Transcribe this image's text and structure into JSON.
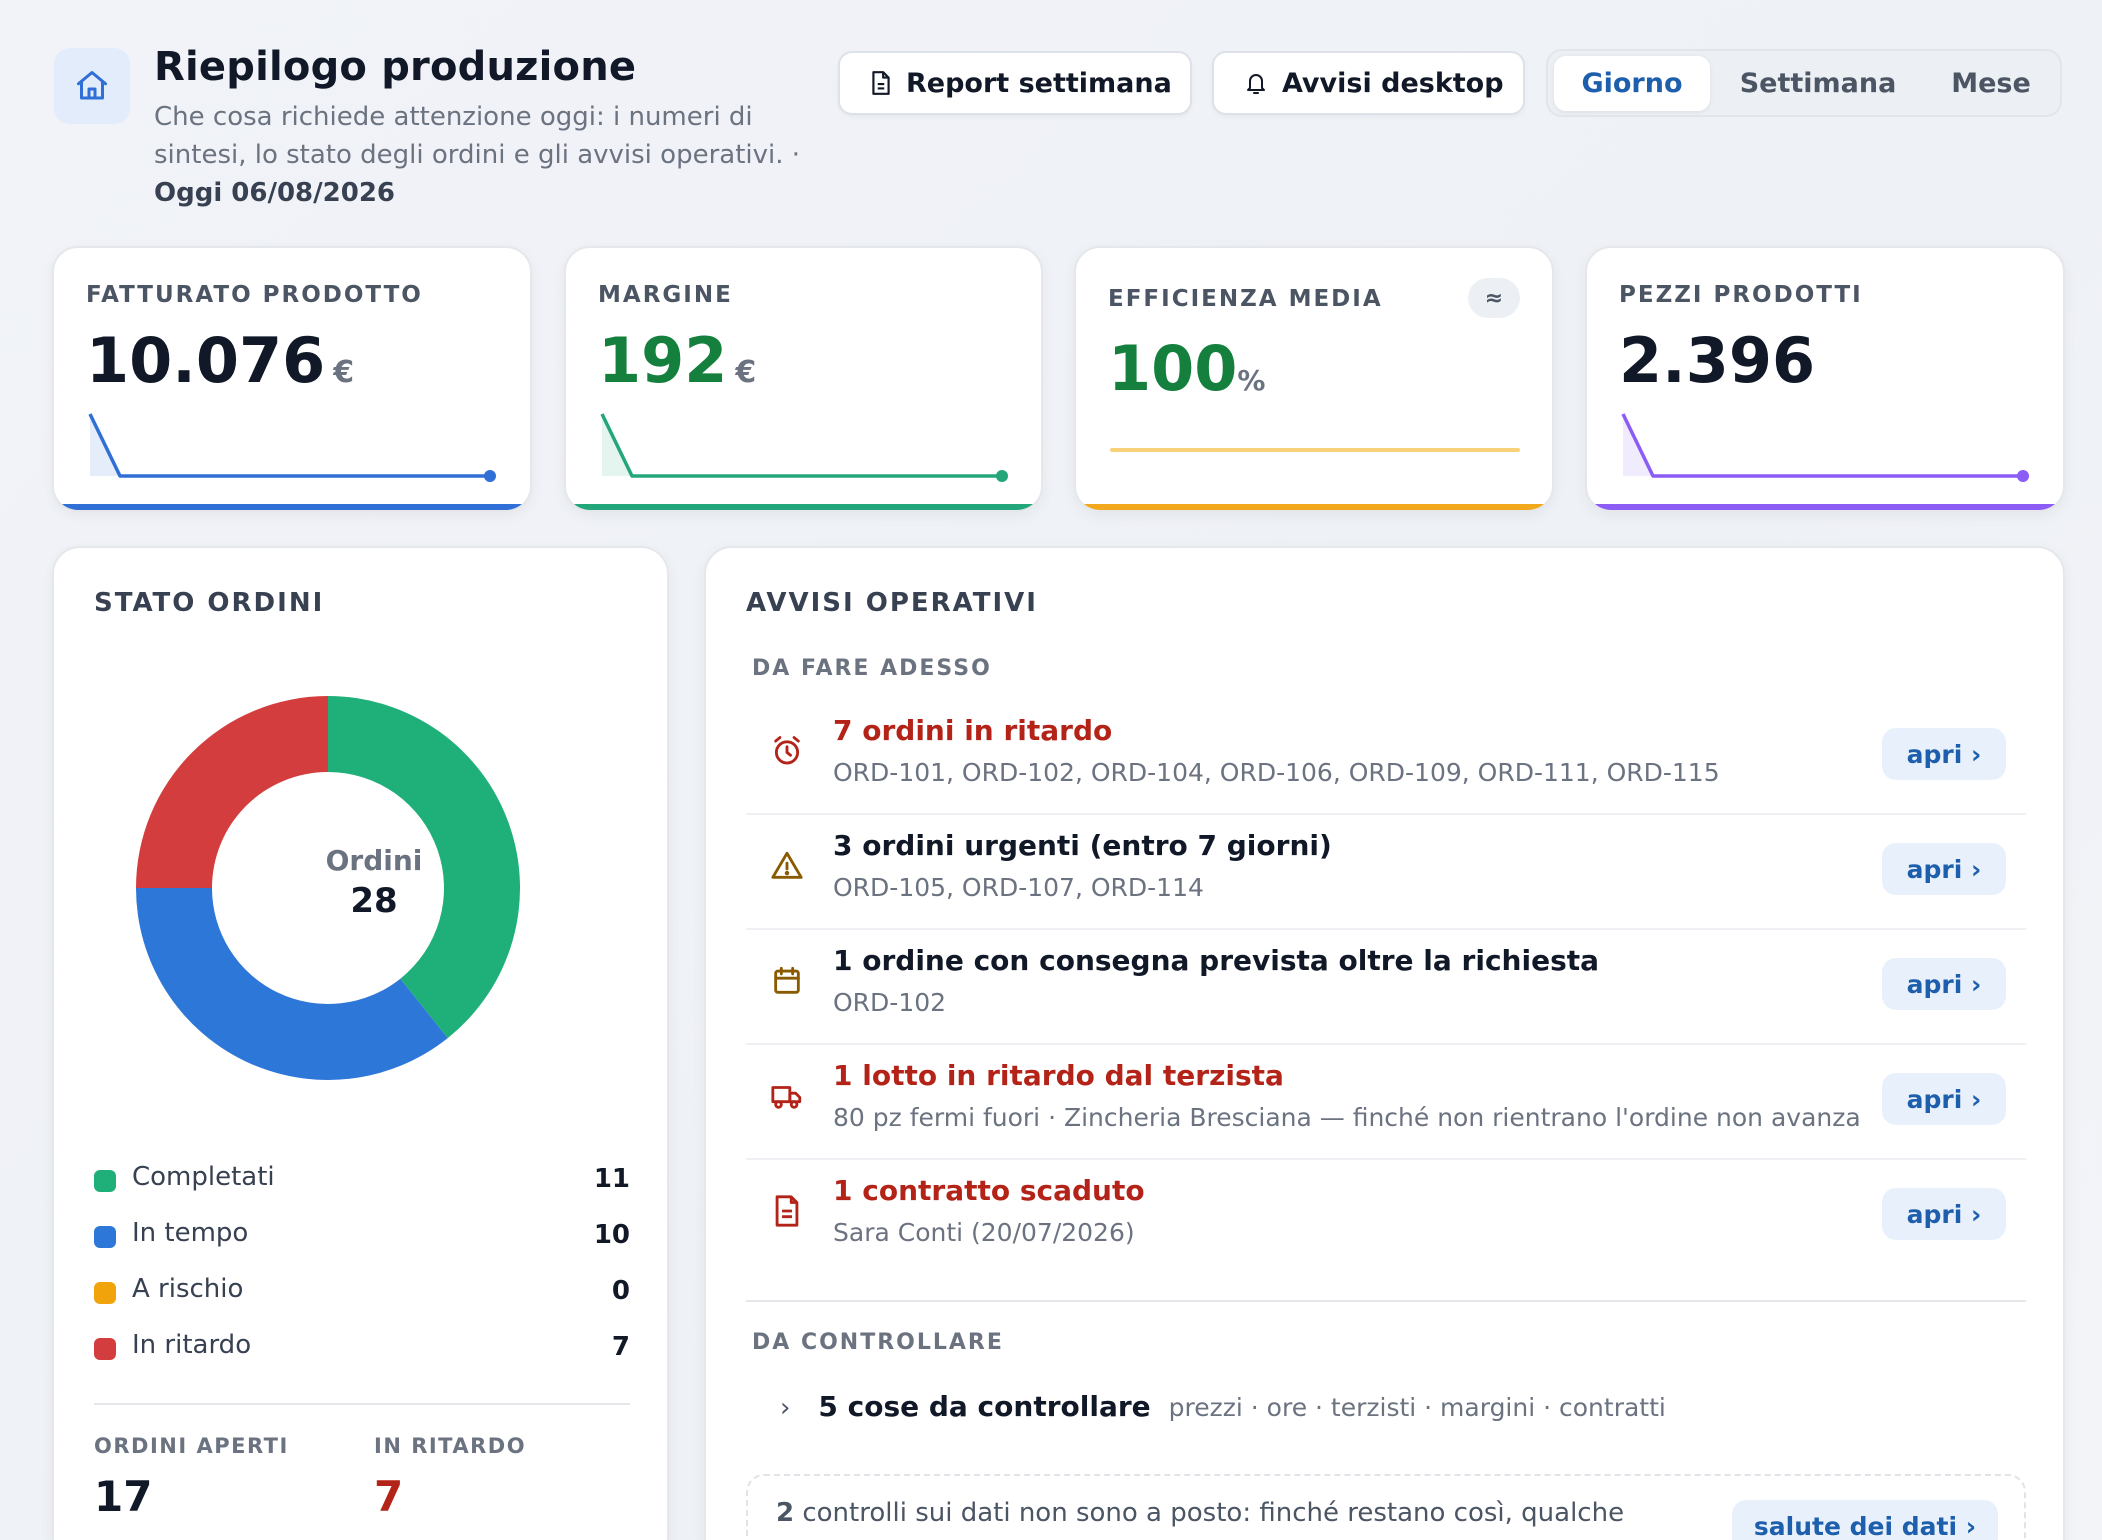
{
  "header": {
    "title": "Riepilogo produzione",
    "subtitle": "Che cosa richiede attenzione oggi: i numeri di sintesi, lo stato degli ordini e gli avvisi operativi. ·",
    "date": "Oggi 06/08/2026",
    "home_icon": "home-icon"
  },
  "toolbar": {
    "report_label": "Report settimana",
    "report_icon": "document-icon",
    "alerts_label": "Avvisi desktop",
    "alerts_icon": "bell-icon",
    "periods": [
      "Giorno",
      "Settimana",
      "Mese"
    ],
    "active_period": "Giorno"
  },
  "kpis": [
    {
      "label": "FATTURATO PRODOTTO",
      "value": "10.076",
      "unit": "€",
      "color": "#2f6fd6",
      "trend": [
        1,
        0,
        0,
        0,
        0,
        0,
        0,
        0,
        0,
        0,
        0,
        0
      ]
    },
    {
      "label": "MARGINE",
      "value": "192",
      "unit": "€",
      "color": "#22a67a",
      "trend": [
        1,
        0,
        0,
        0,
        0,
        0,
        0,
        0,
        0,
        0,
        0,
        0
      ]
    },
    {
      "label": "EFFICIENZA MEDIA",
      "value": "100",
      "unit": "%",
      "badge": "≈",
      "color": "#f2a81d",
      "trend": [
        1,
        1
      ]
    },
    {
      "label": "PEZZI PRODOTTI",
      "value": "2.396",
      "unit": "",
      "color": "#8b5cf6",
      "trend": [
        1,
        0,
        0,
        0,
        0,
        0,
        0,
        0,
        0,
        0,
        0,
        0
      ]
    }
  ],
  "orders": {
    "title": "STATO ORDINI",
    "center_label": "Ordini",
    "total": "28",
    "legend": [
      {
        "label": "Completati",
        "count": "11",
        "color": "#1fb07a"
      },
      {
        "label": "In tempo",
        "count": "10",
        "color": "#2d77d8"
      },
      {
        "label": "A rischio",
        "count": "0",
        "color": "#f0a30a"
      },
      {
        "label": "In ritardo",
        "count": "7",
        "color": "#d33d3d"
      }
    ],
    "stats": [
      {
        "label": "ORDINI APERTI",
        "value": "17"
      },
      {
        "label": "IN RITARDO",
        "value": "7"
      }
    ]
  },
  "chart_data": {
    "type": "pie",
    "center_label": "Ordini",
    "center_value": 28,
    "categories": [
      "Completati",
      "In tempo",
      "A rischio",
      "In ritardo"
    ],
    "values": [
      11,
      10,
      0,
      7
    ],
    "colors": [
      "#1fb07a",
      "#2d77d8",
      "#f0a30a",
      "#d33d3d"
    ]
  },
  "alerts": {
    "title": "AVVISI OPERATIVI",
    "now_label": "DA FARE ADESSO",
    "open_label": "apri ›",
    "items": [
      {
        "icon": "alarm-clock-icon",
        "title": "7 ordini in ritardo",
        "detail": "ORD-101, ORD-102, ORD-104, ORD-106, ORD-109, ORD-111, ORD-115",
        "severity": "red"
      },
      {
        "icon": "warning-icon",
        "title": "3 ordini urgenti (entro 7 giorni)",
        "detail": "ORD-105, ORD-107, ORD-114",
        "severity": "dark"
      },
      {
        "icon": "calendar-icon",
        "title": "1 ordine con consegna prevista oltre la richiesta",
        "detail": "ORD-102",
        "severity": "dark"
      },
      {
        "icon": "truck-icon",
        "title": "1 lotto in ritardo dal terzista",
        "detail": "80 pz fermi fuori · Zincheria Bresciana — finché non rientrano l'ordine non avanza",
        "severity": "red"
      },
      {
        "icon": "document-icon",
        "title": "1 contratto scaduto",
        "detail": "Sara Conti (20/07/2026)",
        "severity": "red"
      }
    ],
    "check_label": "DA CONTROLLARE",
    "check_title": "5 cose da controllare",
    "check_detail": "prezzi · ore · terzisti · margini · contratti",
    "health_count": "2",
    "health_text": "controlli sui dati non sono a posto: finché restano così, qualche",
    "health_button": "salute dei dati ›"
  }
}
